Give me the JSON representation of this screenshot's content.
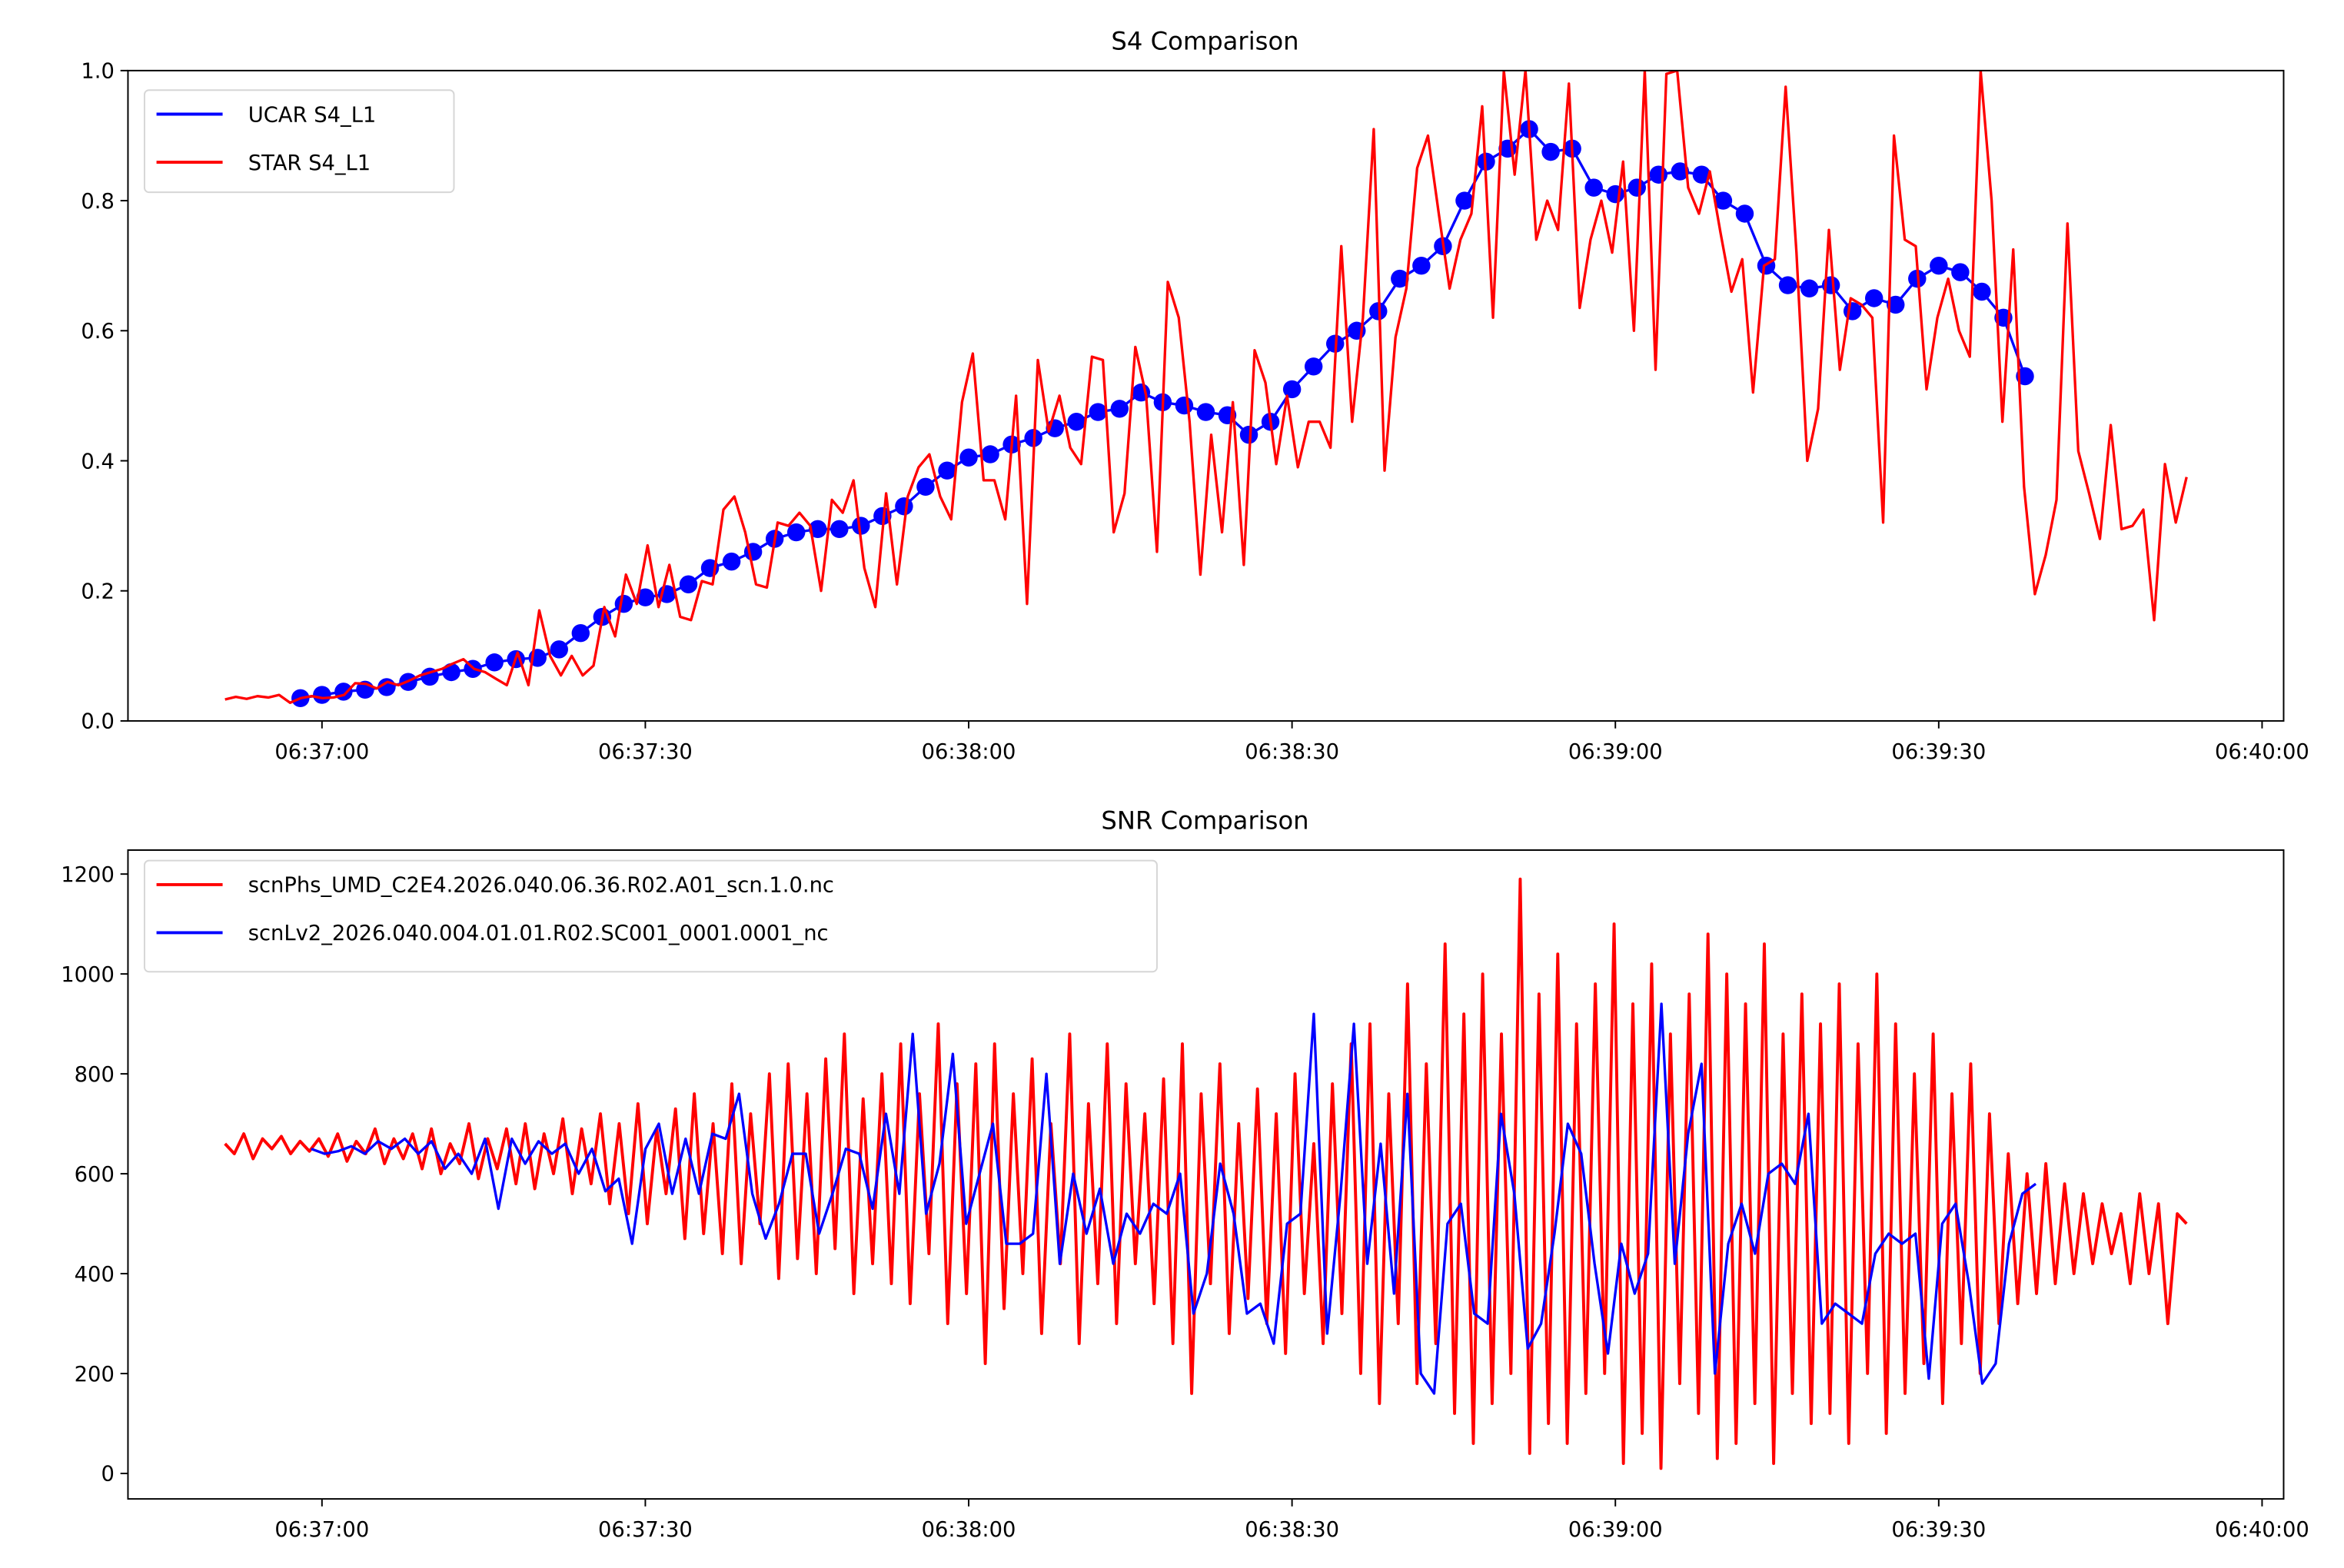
{
  "chart_data": [
    {
      "type": "line",
      "title": "S4 Comparison",
      "xlabel": "",
      "ylabel": "",
      "x_unit": "seconds relative to 06:37:00",
      "xlim": [
        -18,
        182
      ],
      "ylim": [
        0,
        1
      ],
      "xticks": [
        {
          "t": 0,
          "label": "06:37:00"
        },
        {
          "t": 30,
          "label": "06:37:30"
        },
        {
          "t": 60,
          "label": "06:38:00"
        },
        {
          "t": 90,
          "label": "06:38:30"
        },
        {
          "t": 120,
          "label": "06:39:00"
        },
        {
          "t": 150,
          "label": "06:39:30"
        },
        {
          "t": 180,
          "label": "06:40:00"
        }
      ],
      "yticks": [
        {
          "v": 0,
          "label": "0.0"
        },
        {
          "v": 0.2,
          "label": "0.2"
        },
        {
          "v": 0.4,
          "label": "0.4"
        },
        {
          "v": 0.6,
          "label": "0.6"
        },
        {
          "v": 0.8,
          "label": "0.8"
        },
        {
          "v": 1.0,
          "label": "1.0"
        }
      ],
      "grid": false,
      "legend_position": "top-left",
      "series": [
        {
          "name": "UCAR S4_L1",
          "color": "#0000ff",
          "markers": true,
          "t_start": -2,
          "t_end": 158,
          "values": [
            0.035,
            0.04,
            0.045,
            0.048,
            0.052,
            0.06,
            0.068,
            0.075,
            0.08,
            0.09,
            0.095,
            0.097,
            0.11,
            0.135,
            0.16,
            0.18,
            0.19,
            0.195,
            0.21,
            0.235,
            0.245,
            0.26,
            0.28,
            0.29,
            0.295,
            0.295,
            0.3,
            0.315,
            0.33,
            0.36,
            0.385,
            0.405,
            0.41,
            0.425,
            0.435,
            0.45,
            0.46,
            0.475,
            0.48,
            0.505,
            0.49,
            0.485,
            0.475,
            0.47,
            0.44,
            0.46,
            0.51,
            0.545,
            0.58,
            0.6,
            0.63,
            0.68,
            0.7,
            0.73,
            0.8,
            0.86,
            0.88,
            0.91,
            0.875,
            0.88,
            0.82,
            0.81,
            0.82,
            0.84,
            0.845,
            0.84,
            0.8,
            0.78,
            0.7,
            0.67,
            0.665,
            0.67,
            0.63,
            0.65,
            0.64,
            0.68,
            0.7,
            0.69,
            0.66,
            0.62,
            0.53
          ]
        },
        {
          "name": "STAR S4_L1",
          "color": "#ff0000",
          "markers": false,
          "t_start": -9,
          "t_end": 173,
          "values": [
            0.033,
            0.037,
            0.034,
            0.038,
            0.036,
            0.04,
            0.028,
            0.035,
            0.038,
            0.035,
            0.036,
            0.04,
            0.058,
            0.057,
            0.05,
            0.06,
            0.055,
            0.062,
            0.07,
            0.075,
            0.08,
            0.088,
            0.095,
            0.08,
            0.075,
            0.065,
            0.055,
            0.105,
            0.055,
            0.17,
            0.1,
            0.07,
            0.1,
            0.07,
            0.085,
            0.175,
            0.13,
            0.225,
            0.18,
            0.27,
            0.175,
            0.24,
            0.16,
            0.155,
            0.215,
            0.21,
            0.325,
            0.345,
            0.29,
            0.21,
            0.205,
            0.305,
            0.3,
            0.32,
            0.3,
            0.2,
            0.34,
            0.32,
            0.37,
            0.235,
            0.175,
            0.35,
            0.21,
            0.345,
            0.39,
            0.41,
            0.345,
            0.31,
            0.49,
            0.565,
            0.37,
            0.37,
            0.31,
            0.5,
            0.18,
            0.555,
            0.445,
            0.5,
            0.42,
            0.395,
            0.56,
            0.555,
            0.29,
            0.35,
            0.575,
            0.5,
            0.26,
            0.675,
            0.62,
            0.46,
            0.225,
            0.44,
            0.29,
            0.49,
            0.24,
            0.57,
            0.52,
            0.395,
            0.5,
            0.39,
            0.46,
            0.46,
            0.42,
            0.73,
            0.46,
            0.62,
            0.91,
            0.385,
            0.59,
            0.665,
            0.85,
            0.9,
            0.78,
            0.665,
            0.74,
            0.78,
            0.945,
            0.62,
            1.0,
            0.84,
            1.0,
            0.74,
            0.8,
            0.755,
            0.98,
            0.635,
            0.74,
            0.8,
            0.72,
            0.86,
            0.6,
            1.0,
            0.54,
            0.995,
            1.0,
            0.82,
            0.78,
            0.845,
            0.75,
            0.66,
            0.71,
            0.505,
            0.7,
            0.71,
            0.975,
            0.72,
            0.4,
            0.48,
            0.755,
            0.54,
            0.65,
            0.64,
            0.62,
            0.305,
            0.9,
            0.74,
            0.73,
            0.51,
            0.62,
            0.68,
            0.6,
            0.56,
            1.0,
            0.8,
            0.46,
            0.725,
            0.36,
            0.195,
            0.255,
            0.34,
            0.765,
            0.415,
            0.35,
            0.28,
            0.455,
            0.295,
            0.3,
            0.325,
            0.155,
            0.395,
            0.305,
            0.375
          ]
        }
      ]
    },
    {
      "type": "line",
      "title": "SNR Comparison",
      "xlabel": "",
      "ylabel": "",
      "x_unit": "seconds relative to 06:37:00",
      "xlim": [
        -18,
        182
      ],
      "ylim": [
        -51,
        1248
      ],
      "xticks": [
        {
          "t": 0,
          "label": "06:37:00"
        },
        {
          "t": 30,
          "label": "06:37:30"
        },
        {
          "t": 60,
          "label": "06:38:00"
        },
        {
          "t": 90,
          "label": "06:38:30"
        },
        {
          "t": 120,
          "label": "06:39:00"
        },
        {
          "t": 150,
          "label": "06:39:30"
        },
        {
          "t": 180,
          "label": "06:40:00"
        }
      ],
      "yticks": [
        {
          "v": 0,
          "label": "0"
        },
        {
          "v": 200,
          "label": "200"
        },
        {
          "v": 400,
          "label": "400"
        },
        {
          "v": 600,
          "label": "600"
        },
        {
          "v": 800,
          "label": "800"
        },
        {
          "v": 1000,
          "label": "1000"
        },
        {
          "v": 1200,
          "label": "1200"
        }
      ],
      "grid": false,
      "legend_position": "top-left",
      "series": [
        {
          "name": "scnPhs_UMD_C2E4.2026.040.06.36.R02.A01_scn.1.0.nc",
          "color": "#ff0000",
          "markers": false,
          "t_start": -9,
          "t_end": 173,
          "values": [
            660,
            640,
            680,
            630,
            670,
            650,
            675,
            640,
            665,
            645,
            670,
            635,
            680,
            625,
            665,
            640,
            690,
            620,
            670,
            630,
            680,
            610,
            690,
            600,
            660,
            620,
            700,
            590,
            670,
            610,
            690,
            580,
            700,
            570,
            680,
            600,
            710,
            560,
            690,
            580,
            720,
            540,
            700,
            520,
            740,
            500,
            690,
            560,
            730,
            470,
            760,
            480,
            700,
            440,
            780,
            420,
            720,
            500,
            800,
            390,
            820,
            430,
            760,
            400,
            830,
            450,
            880,
            360,
            750,
            420,
            800,
            380,
            860,
            340,
            760,
            440,
            900,
            300,
            780,
            360,
            820,
            220,
            860,
            330,
            760,
            400,
            830,
            280,
            700,
            420,
            880,
            260,
            740,
            380,
            860,
            300,
            780,
            420,
            720,
            340,
            790,
            260,
            860,
            160,
            760,
            380,
            820,
            280,
            700,
            350,
            770,
            300,
            720,
            240,
            800,
            360,
            660,
            260,
            780,
            320,
            860,
            200,
            900,
            140,
            760,
            300,
            980,
            180,
            820,
            260,
            1060,
            120,
            920,
            60,
            1000,
            140,
            880,
            200,
            1190,
            40,
            960,
            100,
            1040,
            60,
            900,
            160,
            980,
            200,
            1100,
            20,
            940,
            80,
            1020,
            10,
            880,
            180,
            960,
            120,
            1080,
            30,
            1000,
            60,
            940,
            140,
            1060,
            20,
            880,
            160,
            960,
            100,
            900,
            120,
            980,
            60,
            860,
            200,
            1000,
            80,
            900,
            160,
            800,
            220,
            880,
            140,
            760,
            260,
            820,
            200,
            720,
            300,
            640,
            340,
            600,
            360,
            620,
            380,
            580,
            400,
            560,
            420,
            540,
            440,
            520,
            380,
            560,
            400,
            540,
            300,
            520,
            500
          ]
        },
        {
          "name": "scnLv2_2026.040.004.01.01.R02.SC001_0001.0001_nc",
          "color": "#0000ff",
          "markers": false,
          "t_start": -1,
          "t_end": 159,
          "values": [
            650,
            640,
            645,
            655,
            640,
            665,
            650,
            670,
            640,
            665,
            610,
            640,
            600,
            670,
            530,
            670,
            620,
            665,
            640,
            660,
            600,
            650,
            565,
            590,
            460,
            650,
            700,
            560,
            670,
            560,
            680,
            670,
            760,
            560,
            470,
            540,
            640,
            640,
            480,
            560,
            650,
            640,
            530,
            720,
            560,
            880,
            520,
            620,
            840,
            500,
            600,
            700,
            460,
            460,
            480,
            800,
            420,
            600,
            480,
            570,
            420,
            520,
            480,
            540,
            520,
            600,
            320,
            400,
            620,
            520,
            320,
            340,
            260,
            500,
            520,
            920,
            280,
            560,
            900,
            420,
            660,
            360,
            760,
            200,
            160,
            500,
            540,
            320,
            300,
            720,
            560,
            250,
            300,
            480,
            700,
            640,
            420,
            240,
            460,
            360,
            440,
            940,
            420,
            680,
            820,
            200,
            460,
            540,
            440,
            600,
            620,
            580,
            720,
            300,
            340,
            320,
            300,
            440,
            480,
            460,
            480,
            190,
            500,
            540,
            380,
            180,
            220,
            460,
            560,
            580
          ]
        }
      ]
    }
  ]
}
